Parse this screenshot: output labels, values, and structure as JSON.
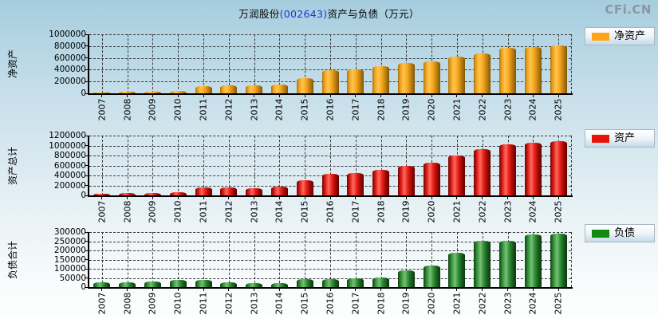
{
  "title": {
    "prefix": "万润股份",
    "code": "(002643)",
    "suffix": "资产与负债（万元）"
  },
  "watermark": "CFi.CN",
  "unit": "万元",
  "colors": {
    "net_assets": "#FFA318",
    "total_assets": "#E81309",
    "total_liabilities": "#128712",
    "title_code": "#2433cc",
    "watermark": "#8b97a1"
  },
  "chart_data": [
    {
      "type": "bar",
      "name": "net-assets",
      "ylabel": "净资产",
      "legend": "净资产",
      "legend_position": "right",
      "legend_color": "#FFA318",
      "grid": true,
      "ylim": [
        0,
        1000000
      ],
      "ytick_step": 200000,
      "categories": [
        "2007",
        "2008",
        "2009",
        "2010",
        "2011",
        "2012",
        "2013",
        "2014",
        "2015",
        "2016",
        "2017",
        "2018",
        "2019",
        "2020",
        "2021",
        "2022",
        "2023",
        "2024",
        "2025"
      ],
      "values": [
        10000,
        22000,
        23000,
        35000,
        120000,
        130000,
        130000,
        145000,
        260000,
        390000,
        410000,
        465000,
        510000,
        545000,
        615000,
        680000,
        770000,
        780000,
        805000
      ]
    },
    {
      "type": "bar",
      "name": "total-assets",
      "ylabel": "资产总计",
      "legend": "资产",
      "legend_position": "right",
      "legend_color": "#E81309",
      "grid": true,
      "ylim": [
        0,
        1200000
      ],
      "ytick_step": 200000,
      "categories": [
        "2007",
        "2008",
        "2009",
        "2010",
        "2011",
        "2012",
        "2013",
        "2014",
        "2015",
        "2016",
        "2017",
        "2018",
        "2019",
        "2020",
        "2021",
        "2022",
        "2023",
        "2024",
        "2025"
      ],
      "values": [
        40000,
        50000,
        53000,
        70000,
        155000,
        155000,
        150000,
        170000,
        300000,
        435000,
        455000,
        520000,
        600000,
        660000,
        800000,
        930000,
        1020000,
        1060000,
        1090000
      ]
    },
    {
      "type": "bar",
      "name": "total-liabilities",
      "ylabel": "负债合计",
      "legend": "负债",
      "legend_position": "right",
      "legend_color": "#128712",
      "grid": true,
      "ylim": [
        0,
        300000
      ],
      "ytick_step": 50000,
      "categories": [
        "2007",
        "2008",
        "2009",
        "2010",
        "2011",
        "2012",
        "2013",
        "2014",
        "2015",
        "2016",
        "2017",
        "2018",
        "2019",
        "2020",
        "2021",
        "2022",
        "2023",
        "2024",
        "2025"
      ],
      "values": [
        27000,
        27000,
        30000,
        38000,
        38000,
        27000,
        22000,
        23000,
        42000,
        43000,
        48000,
        52000,
        90000,
        118000,
        188000,
        252000,
        252000,
        285000,
        290000
      ]
    }
  ]
}
